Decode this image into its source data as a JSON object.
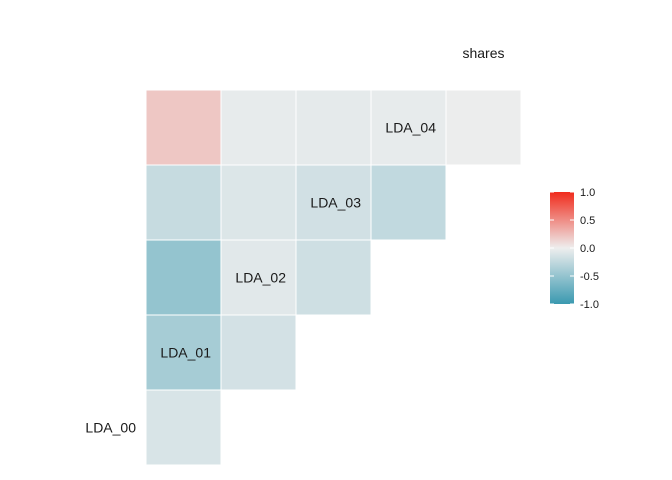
{
  "chart_data": {
    "type": "heatmap",
    "subtype": "lower-triangle correlation matrix",
    "variables": [
      "LDA_00",
      "LDA_01",
      "LDA_02",
      "LDA_03",
      "LDA_04",
      "shares"
    ],
    "cells": [
      {
        "row": "LDA_01",
        "col": "LDA_00",
        "value": -0.12
      },
      {
        "row": "LDA_02",
        "col": "LDA_00",
        "value": -0.4
      },
      {
        "row": "LDA_02",
        "col": "LDA_01",
        "value": -0.15
      },
      {
        "row": "LDA_03",
        "col": "LDA_00",
        "value": -0.5
      },
      {
        "row": "LDA_03",
        "col": "LDA_01",
        "value": -0.07
      },
      {
        "row": "LDA_03",
        "col": "LDA_02",
        "value": -0.18
      },
      {
        "row": "LDA_04",
        "col": "LDA_00",
        "value": -0.22
      },
      {
        "row": "LDA_04",
        "col": "LDA_01",
        "value": -0.1
      },
      {
        "row": "LDA_04",
        "col": "LDA_02",
        "value": -0.16
      },
      {
        "row": "LDA_04",
        "col": "LDA_03",
        "value": -0.25
      },
      {
        "row": "shares",
        "col": "LDA_00",
        "value": 0.2
      },
      {
        "row": "shares",
        "col": "LDA_01",
        "value": -0.04
      },
      {
        "row": "shares",
        "col": "LDA_02",
        "value": -0.05
      },
      {
        "row": "shares",
        "col": "LDA_03",
        "value": -0.04
      },
      {
        "row": "shares",
        "col": "LDA_04",
        "value": -0.01
      }
    ],
    "color_scale": {
      "limits": [
        -1.0,
        1.0
      ],
      "low": "#3a99b0",
      "mid": "#eeeeee",
      "high": "#f02b1c",
      "ticks": [
        "1.0",
        "0.5",
        "0.0",
        "-0.5",
        "-1.0"
      ],
      "tick_values": [
        1.0,
        0.5,
        0.0,
        -0.5,
        -1.0
      ]
    },
    "legend_position": "right",
    "title": "",
    "xlabel": "",
    "ylabel": ""
  }
}
